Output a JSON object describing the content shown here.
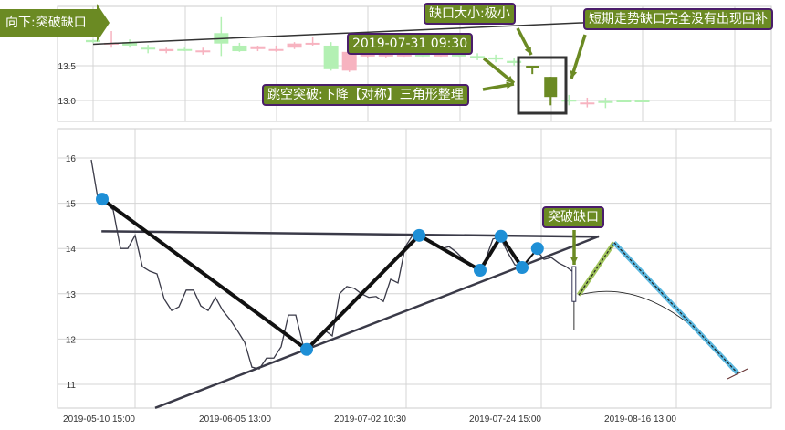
{
  "colors": {
    "up": "#b3f0b3",
    "down": "#f7b3c0",
    "highlight": "#6b8a23",
    "label_bg": "#6b8a23",
    "label_border": "#4a1d6a",
    "pivot": "#1e8fd6",
    "price": "#3a3a48",
    "projection_up": "#9fc35a",
    "projection_down": "#5bb8e0"
  },
  "annotations": {
    "arrow_label": "向下:突破缺口",
    "datetime": "2019-07-31 09:30",
    "pattern": "跳空突破:下降【对称】三角形整理",
    "gap_size": "缺口大小:极小",
    "gap_fill": "短期走势缺口完全没有出现回补",
    "main_gap": "突破缺口"
  },
  "chart_data": [
    {
      "type": "candlestick",
      "yticks": [
        "13.5",
        "13.0"
      ],
      "ylim": [
        12.83,
        14.36
      ],
      "candles": [
        {
          "dir": "up",
          "body": [
            13.87,
            13.84
          ],
          "wick": [
            13.88,
            13.83
          ]
        },
        {
          "dir": "down",
          "body": [
            13.83,
            13.82
          ],
          "wick": [
            14.0,
            13.76
          ]
        },
        {
          "dir": "up",
          "body": [
            13.84,
            13.79
          ],
          "wick": [
            13.88,
            13.76
          ]
        },
        {
          "dir": "up",
          "body": [
            13.76,
            13.74
          ],
          "wick": [
            13.8,
            13.68
          ]
        },
        {
          "dir": "down",
          "body": [
            13.74,
            13.71
          ],
          "wick": [
            13.76,
            13.68
          ]
        },
        {
          "dir": "up",
          "body": [
            13.74,
            13.72
          ],
          "wick": [
            13.76,
            13.71
          ]
        },
        {
          "dir": "down",
          "body": [
            13.72,
            13.71
          ],
          "wick": [
            13.76,
            13.66
          ]
        },
        {
          "dir": "up",
          "body": [
            13.97,
            13.82
          ],
          "wick": [
            14.2,
            13.64
          ]
        },
        {
          "dir": "up",
          "body": [
            13.79,
            13.71
          ],
          "wick": [
            13.83,
            13.7
          ]
        },
        {
          "dir": "down",
          "body": [
            13.78,
            13.74
          ],
          "wick": [
            13.79,
            13.71
          ]
        },
        {
          "dir": "down",
          "body": [
            13.74,
            13.72
          ],
          "wick": [
            13.79,
            13.7
          ]
        },
        {
          "dir": "down",
          "body": [
            13.82,
            13.76
          ],
          "wick": [
            13.84,
            13.74
          ]
        },
        {
          "dir": "down",
          "body": [
            13.83,
            13.82
          ],
          "wick": [
            13.91,
            13.79
          ]
        },
        {
          "dir": "up",
          "body": [
            13.79,
            13.45
          ],
          "wick": [
            13.84,
            13.43
          ]
        },
        {
          "dir": "down",
          "body": [
            13.7,
            13.43
          ],
          "wick": [
            13.72,
            13.41
          ]
        },
        {
          "dir": "down",
          "body": [
            13.66,
            13.64
          ],
          "wick": [
            13.7,
            13.62
          ]
        },
        {
          "dir": "down",
          "body": [
            13.66,
            13.64
          ],
          "wick": [
            13.7,
            13.62
          ]
        },
        {
          "dir": "down",
          "body": [
            13.66,
            13.64
          ],
          "wick": [
            13.68,
            13.63
          ]
        },
        {
          "dir": "up",
          "body": [
            13.66,
            13.64
          ],
          "wick": [
            13.68,
            13.63
          ]
        },
        {
          "dir": "down",
          "body": [
            13.66,
            13.64
          ],
          "wick": [
            13.68,
            13.63
          ]
        },
        {
          "dir": "up",
          "body": [
            13.66,
            13.64
          ],
          "wick": [
            13.68,
            13.63
          ]
        },
        {
          "dir": "up",
          "body": [
            13.64,
            13.62
          ],
          "wick": [
            13.68,
            13.58
          ]
        },
        {
          "dir": "up",
          "body": [
            13.62,
            13.59
          ],
          "wick": [
            13.66,
            13.55
          ]
        },
        {
          "dir": "up",
          "body": [
            13.57,
            13.54
          ],
          "wick": [
            13.61,
            13.5
          ]
        },
        {
          "dir": "highlight",
          "body": [
            13.5,
            13.49
          ],
          "wick": [
            13.5,
            13.38
          ]
        },
        {
          "dir": "highlight",
          "body": [
            13.34,
            13.05
          ],
          "wick": [
            13.34,
            12.93
          ]
        },
        {
          "dir": "up",
          "body": [
            13.01,
            12.99
          ],
          "wick": [
            13.08,
            12.93
          ]
        },
        {
          "dir": "down",
          "body": [
            12.97,
            12.95
          ],
          "wick": [
            13.04,
            12.9
          ]
        },
        {
          "dir": "up",
          "body": [
            12.99,
            12.97
          ],
          "wick": [
            13.04,
            12.89
          ]
        },
        {
          "dir": "up",
          "body": [
            13.0,
            12.99
          ],
          "wick": [
            13.01,
            12.99
          ]
        },
        {
          "dir": "up",
          "body": [
            13.0,
            12.99
          ],
          "wick": [
            13.01,
            12.99
          ]
        }
      ],
      "trendline": [
        13.81,
        14.12
      ]
    },
    {
      "type": "line",
      "xticks": [
        "2019-05-10 15:00",
        "2019-06-05 13:00",
        "2019-07-02 10:30",
        "2019-07-24 15:00",
        "2019-08-16 13:00"
      ],
      "yticks": [
        "16",
        "15",
        "14",
        "13",
        "12",
        "11"
      ],
      "ylim": [
        10.48,
        16.65
      ],
      "grid": true,
      "price": [
        15.96,
        15.01,
        15.01,
        14.85,
        14.0,
        14.0,
        14.29,
        13.6,
        13.5,
        13.44,
        12.88,
        12.63,
        12.71,
        13.08,
        13.08,
        12.73,
        12.63,
        12.92,
        12.63,
        12.43,
        12.19,
        11.93,
        11.38,
        11.34,
        11.58,
        11.58,
        11.83,
        12.53,
        12.53,
        11.87,
        11.83,
        12.07,
        12.19,
        12.07,
        13.0,
        13.16,
        13.12,
        13.0,
        12.92,
        12.94,
        12.83,
        13.32,
        13.24,
        14.04,
        14.29,
        14.33,
        14.21,
        14.08,
        14.0,
        14.04,
        13.92,
        13.76,
        13.64,
        13.52,
        13.76,
        14.21,
        14.25,
        13.92,
        13.64,
        13.6,
        13.8,
        13.96,
        13.76,
        13.8,
        13.68,
        13.6,
        13.48
      ],
      "pivots": [
        {
          "i": 1.5,
          "v": 15.09
        },
        {
          "i": 29.5,
          "v": 11.77
        },
        {
          "i": 44.9,
          "v": 14.29
        },
        {
          "i": 53.25,
          "v": 13.52
        },
        {
          "i": 56.1,
          "v": 14.27
        },
        {
          "i": 59,
          "v": 13.58
        },
        {
          "i": 61.1,
          "v": 14.0
        }
      ],
      "resistance": [
        {
          "i": 1.4,
          "v": 14.38
        },
        {
          "i": 69.5,
          "v": 14.26
        }
      ],
      "support": [
        {
          "i": 8.75,
          "v": 10.48
        },
        {
          "i": 69.5,
          "v": 14.27
        }
      ],
      "gap_candle": {
        "i": 66.1,
        "top": 13.6,
        "bottom": 12.83,
        "low": 12.19
      },
      "projection": [
        {
          "i": 66.75,
          "v": 12.97
        },
        {
          "i": 71.6,
          "v": 14.13
        },
        {
          "i": 88.5,
          "v": 11.25
        }
      ]
    }
  ]
}
